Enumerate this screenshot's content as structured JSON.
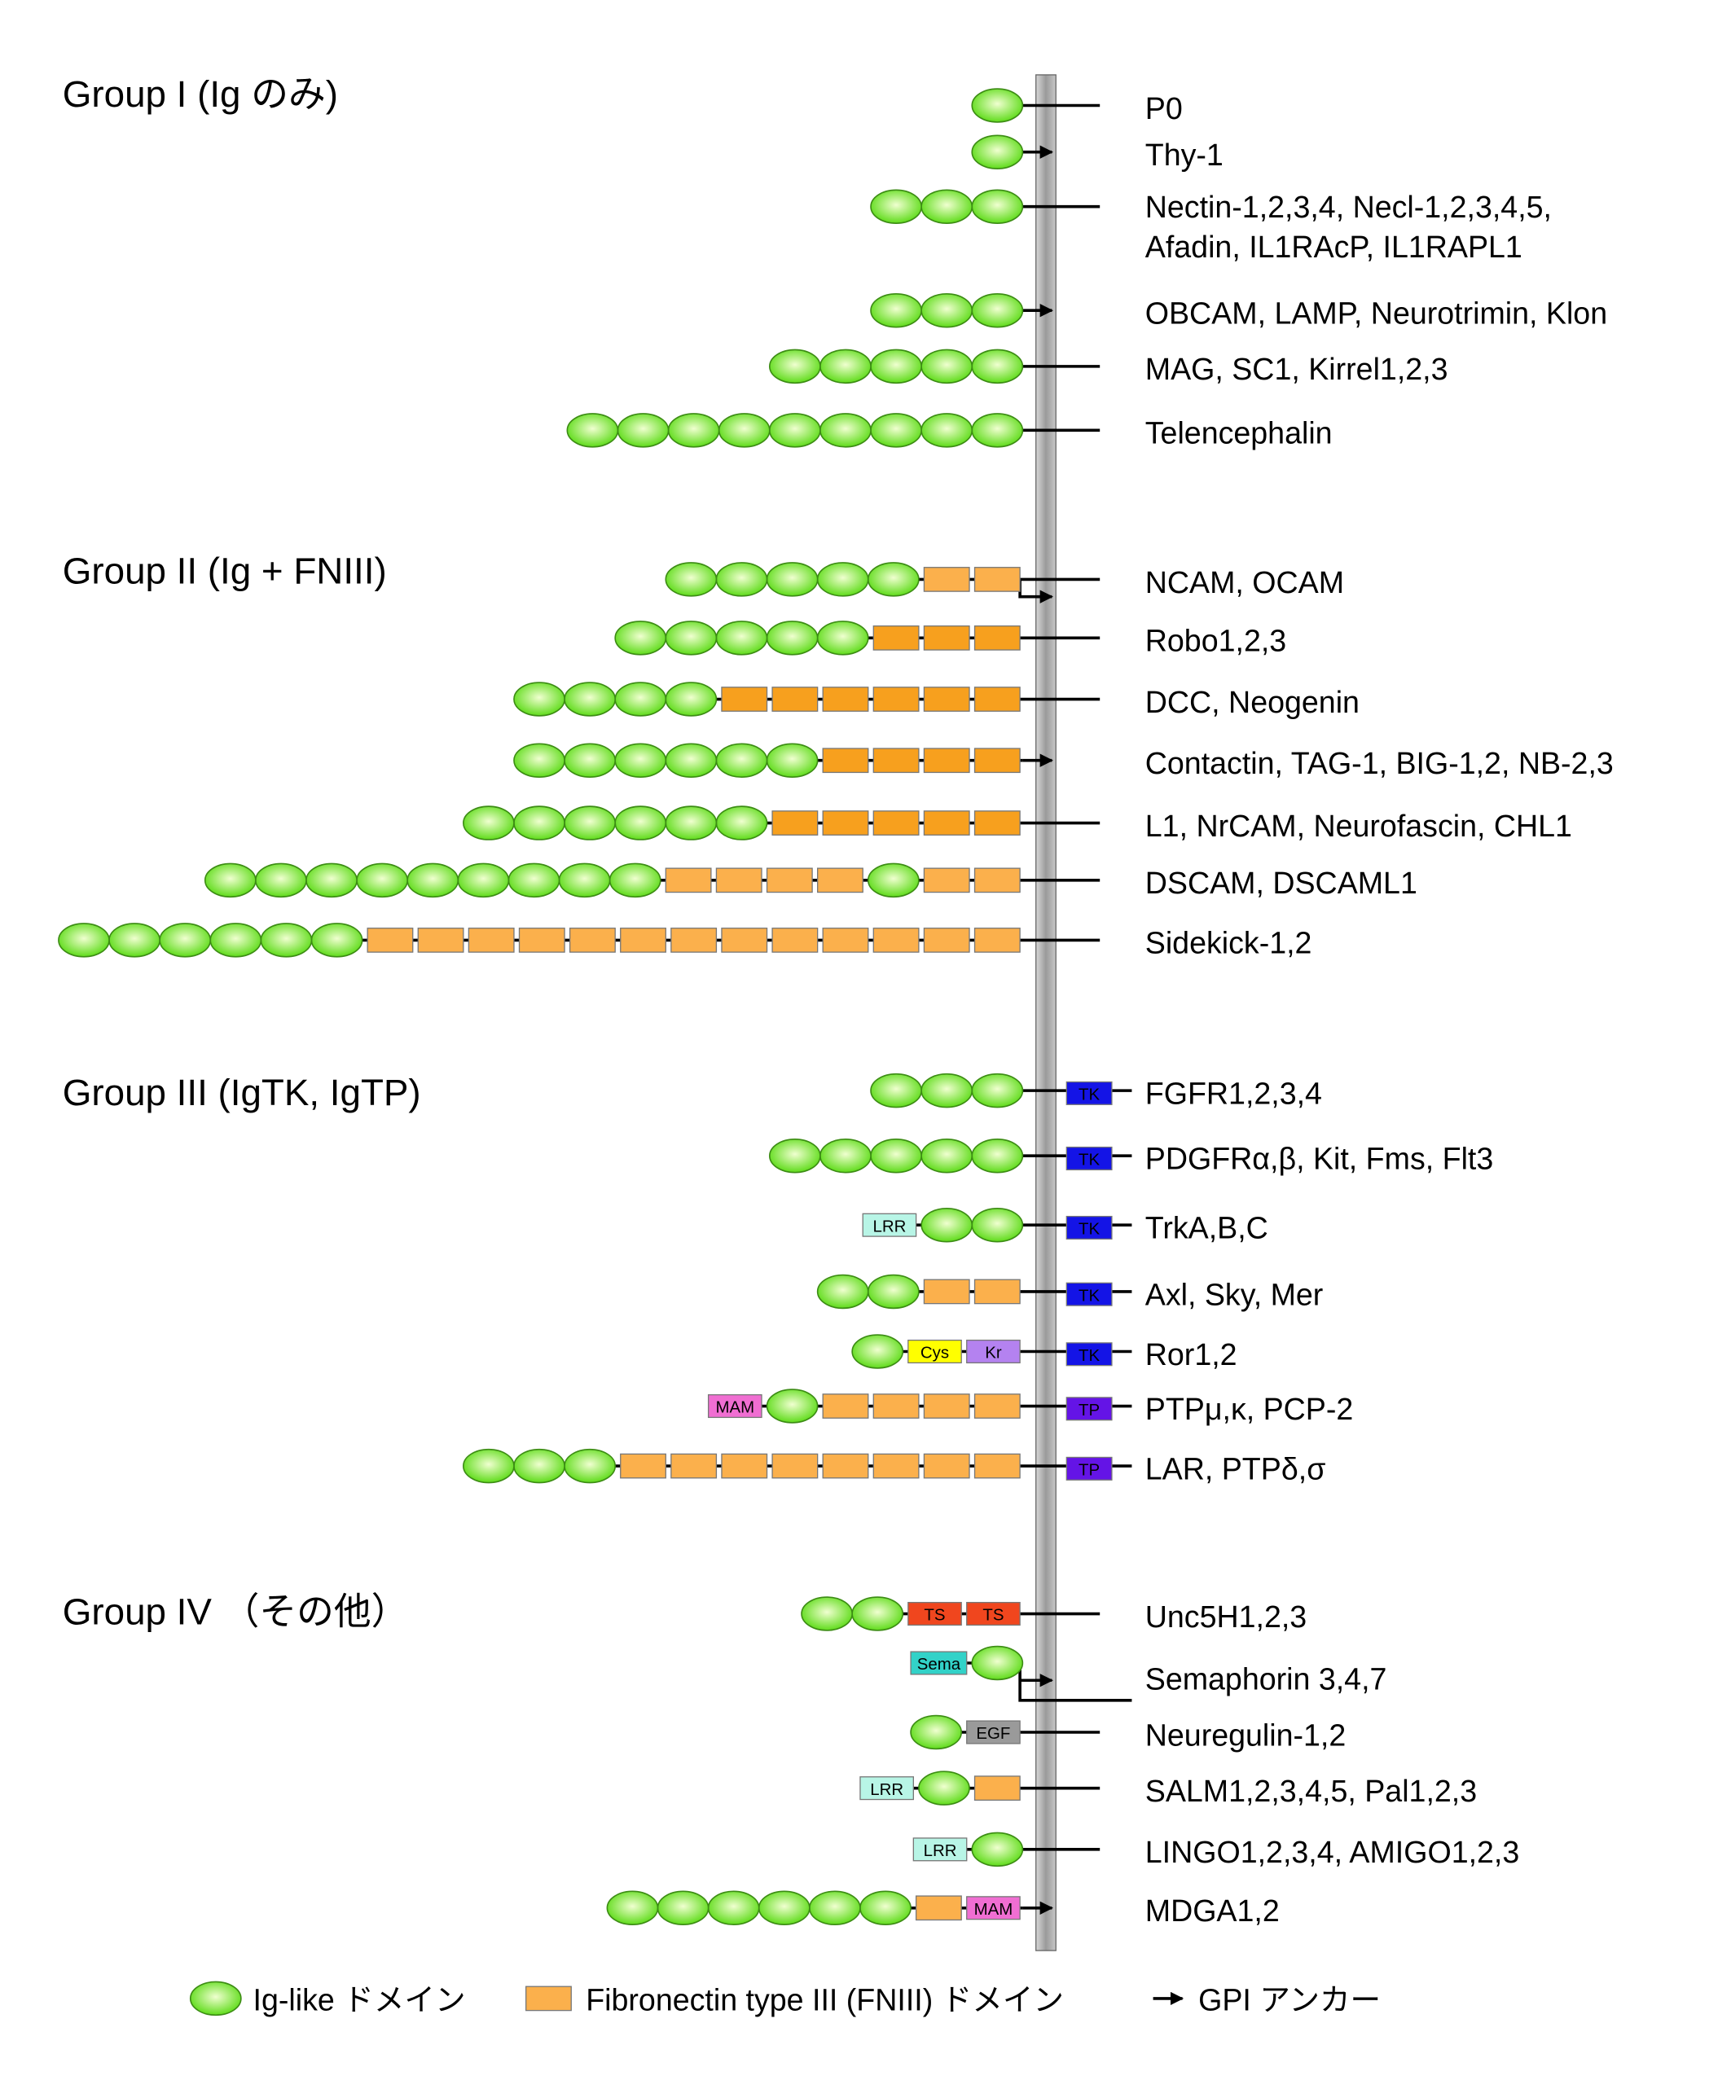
{
  "groups": [
    {
      "title": "Group I  (Ig のみ)"
    },
    {
      "title": "Group II  (Ig + FNIII)"
    },
    {
      "title": "Group III  (IgTK, IgTP)"
    },
    {
      "title": "Group IV （その他）"
    }
  ],
  "colors": {
    "ig_fill_center": "#f0ffd0",
    "ig_fill_edge": "#5fdc1a",
    "ig_stroke": "#3c8c14",
    "fn": "#fbb04c",
    "fn_dark": "#f7a01e",
    "membrane": "#a0a0a0",
    "LRR": "#b8f5e6",
    "TK": "#1414e6",
    "TP": "#6414e6",
    "Cys": "#ffff00",
    "Kr": "#b482f0",
    "MAM": "#f06ed2",
    "TS": "#f0461e",
    "Sema": "#32d2c8",
    "EGF": "#9a9a9a"
  },
  "rows": [
    {
      "group": 0,
      "label": [
        "P0"
      ],
      "domains": [
        "ig"
      ],
      "anchor": "tm"
    },
    {
      "group": 0,
      "label": [
        "Thy-1"
      ],
      "domains": [
        "ig"
      ],
      "anchor": "gpi"
    },
    {
      "group": 0,
      "label": [
        "Nectin-1,2,3,4, Necl-1,2,3,4,5,",
        "Afadin, IL1RAcP, IL1RAPL1"
      ],
      "domains": [
        "ig",
        "ig",
        "ig"
      ],
      "anchor": "tm"
    },
    {
      "group": 0,
      "label": [
        "OBCAM, LAMP, Neurotrimin, Klon"
      ],
      "domains": [
        "ig",
        "ig",
        "ig"
      ],
      "anchor": "gpi"
    },
    {
      "group": 0,
      "label": [
        "MAG, SC1, Kirrel1,2,3"
      ],
      "domains": [
        "ig",
        "ig",
        "ig",
        "ig",
        "ig"
      ],
      "anchor": "tm"
    },
    {
      "group": 0,
      "label": [
        "Telencephalin"
      ],
      "domains": [
        "ig",
        "ig",
        "ig",
        "ig",
        "ig",
        "ig",
        "ig",
        "ig",
        "ig"
      ],
      "anchor": "tm"
    },
    {
      "group": 1,
      "label": [
        "NCAM, OCAM"
      ],
      "domains": [
        "ig",
        "ig",
        "ig",
        "ig",
        "ig",
        "fn",
        "fn"
      ],
      "anchor": "tm+gpi"
    },
    {
      "group": 1,
      "label": [
        "Robo1,2,3"
      ],
      "domains": [
        "ig",
        "ig",
        "ig",
        "ig",
        "ig",
        "fnd",
        "fnd",
        "fnd"
      ],
      "anchor": "tm"
    },
    {
      "group": 1,
      "label": [
        "DCC, Neogenin"
      ],
      "domains": [
        "ig",
        "ig",
        "ig",
        "ig",
        "fnd",
        "fnd",
        "fnd",
        "fnd",
        "fnd",
        "fnd"
      ],
      "anchor": "tm"
    },
    {
      "group": 1,
      "label": [
        "Contactin, TAG-1, BIG-1,2, NB-2,3"
      ],
      "domains": [
        "ig",
        "ig",
        "ig",
        "ig",
        "ig",
        "ig",
        "fnd",
        "fnd",
        "fnd",
        "fnd"
      ],
      "anchor": "gpi"
    },
    {
      "group": 1,
      "label": [
        "L1, NrCAM, Neurofascin, CHL1"
      ],
      "domains": [
        "ig",
        "ig",
        "ig",
        "ig",
        "ig",
        "ig",
        "fnd",
        "fnd",
        "fnd",
        "fnd",
        "fnd"
      ],
      "anchor": "tm"
    },
    {
      "group": 1,
      "label": [
        "DSCAM, DSCAML1"
      ],
      "domains": [
        "ig",
        "ig",
        "ig",
        "ig",
        "ig",
        "ig",
        "ig",
        "ig",
        "ig",
        "fn",
        "fn",
        "fn",
        "fn",
        "ig",
        "fn",
        "fn"
      ],
      "anchor": "tm"
    },
    {
      "group": 1,
      "label": [
        "Sidekick-1,2"
      ],
      "domains": [
        "ig",
        "ig",
        "ig",
        "ig",
        "ig",
        "ig",
        "fn",
        "fn",
        "fn",
        "fn",
        "fn",
        "fn",
        "fn",
        "fn",
        "fn",
        "fn",
        "fn",
        "fn",
        "fn"
      ],
      "anchor": "tm"
    },
    {
      "group": 2,
      "label": [
        "FGFR1,2,3,4"
      ],
      "domains": [
        "ig",
        "ig",
        "ig"
      ],
      "anchor": "tm",
      "intra": "TK"
    },
    {
      "group": 2,
      "label": [
        "PDGFRα,β, Kit, Fms, Flt3"
      ],
      "domains": [
        "ig",
        "ig",
        "ig",
        "ig",
        "ig"
      ],
      "anchor": "tm",
      "intra": "TK"
    },
    {
      "group": 2,
      "label": [
        "TrkA,B,C"
      ],
      "domains": [
        "LRR",
        "ig",
        "ig"
      ],
      "anchor": "tm",
      "intra": "TK"
    },
    {
      "group": 2,
      "label": [
        "Axl, Sky, Mer"
      ],
      "domains": [
        "ig",
        "ig",
        "fn",
        "fn"
      ],
      "anchor": "tm",
      "intra": "TK"
    },
    {
      "group": 2,
      "label": [
        "Ror1,2"
      ],
      "domains": [
        "ig",
        "Cys",
        "Kr"
      ],
      "anchor": "tm",
      "intra": "TK"
    },
    {
      "group": 2,
      "label": [
        "PTPμ,κ, PCP-2"
      ],
      "domains": [
        "MAM",
        "ig",
        "fn",
        "fn",
        "fn",
        "fn"
      ],
      "anchor": "tm",
      "intra": "TP"
    },
    {
      "group": 2,
      "label": [
        "LAR, PTPδ,σ"
      ],
      "domains": [
        "ig",
        "ig",
        "ig",
        "fn",
        "fn",
        "fn",
        "fn",
        "fn",
        "fn",
        "fn",
        "fn"
      ],
      "anchor": "tm",
      "intra": "TP"
    },
    {
      "group": 3,
      "label": [
        "Unc5H1,2,3"
      ],
      "domains": [
        "ig",
        "ig",
        "TS",
        "TS"
      ],
      "anchor": "tm"
    },
    {
      "group": 3,
      "label": [
        "Semaphorin 3,4,7"
      ],
      "domains": [
        "Sema",
        "ig"
      ],
      "anchor": "gpi+tm"
    },
    {
      "group": 3,
      "label": [
        "Neuregulin-1,2"
      ],
      "domains": [
        "ig",
        "EGF"
      ],
      "anchor": "tm"
    },
    {
      "group": 3,
      "label": [
        "SALM1,2,3,4,5, Pal1,2,3"
      ],
      "domains": [
        "LRR",
        "ig",
        "fn"
      ],
      "anchor": "tm"
    },
    {
      "group": 3,
      "label": [
        "LINGO1,2,3,4, AMIGO1,2,3"
      ],
      "domains": [
        "LRR",
        "ig"
      ],
      "anchor": "tm"
    },
    {
      "group": 3,
      "label": [
        "MDGA1,2"
      ],
      "domains": [
        "ig",
        "ig",
        "ig",
        "ig",
        "ig",
        "ig",
        "fn",
        "MAM"
      ],
      "anchor": "gpi"
    }
  ],
  "legend": {
    "ig": "Ig-like ドメイン",
    "fn": "Fibronectin type III (FNIII) ドメイン",
    "gpi": "GPI アンカー"
  }
}
